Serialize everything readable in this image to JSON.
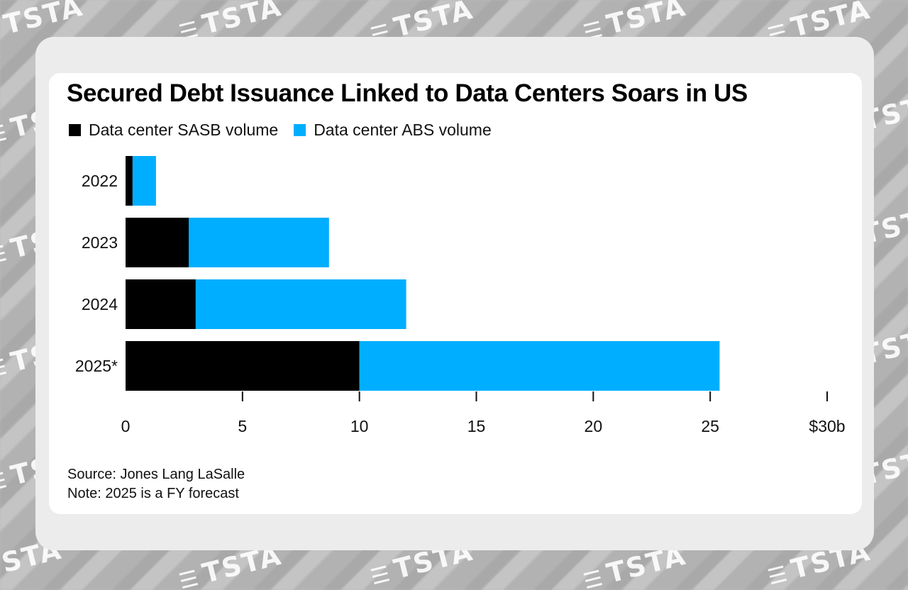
{
  "watermark": {
    "brand": "TSTA",
    "icon_name": "tsta-logo-icon"
  },
  "colors": {
    "sasb": "#000000",
    "abs": "#00aeff",
    "axis": "#111111"
  },
  "chart_data": {
    "type": "bar",
    "orientation": "horizontal",
    "stacked": true,
    "title": "Secured Debt Issuance Linked to Data Centers Soars in US",
    "categories": [
      "2022",
      "2023",
      "2024",
      "2025*"
    ],
    "series": [
      {
        "name": "Data center SASB volume",
        "values": [
          0.3,
          2.7,
          3.0,
          10.0
        ]
      },
      {
        "name": "Data center ABS volume",
        "values": [
          1.0,
          6.0,
          9.0,
          15.4
        ]
      }
    ],
    "xlim": [
      0,
      30
    ],
    "xticks": [
      0,
      5,
      10,
      15,
      20,
      25,
      30
    ],
    "xtick_labels": [
      "0",
      "5",
      "10",
      "15",
      "20",
      "25",
      "$30b"
    ],
    "xlabel": "",
    "ylabel": "",
    "legend_position": "top-left",
    "grid": false
  },
  "notes": {
    "source": "Source: Jones Lang LaSalle",
    "note": "Note: 2025 is a FY forecast"
  }
}
